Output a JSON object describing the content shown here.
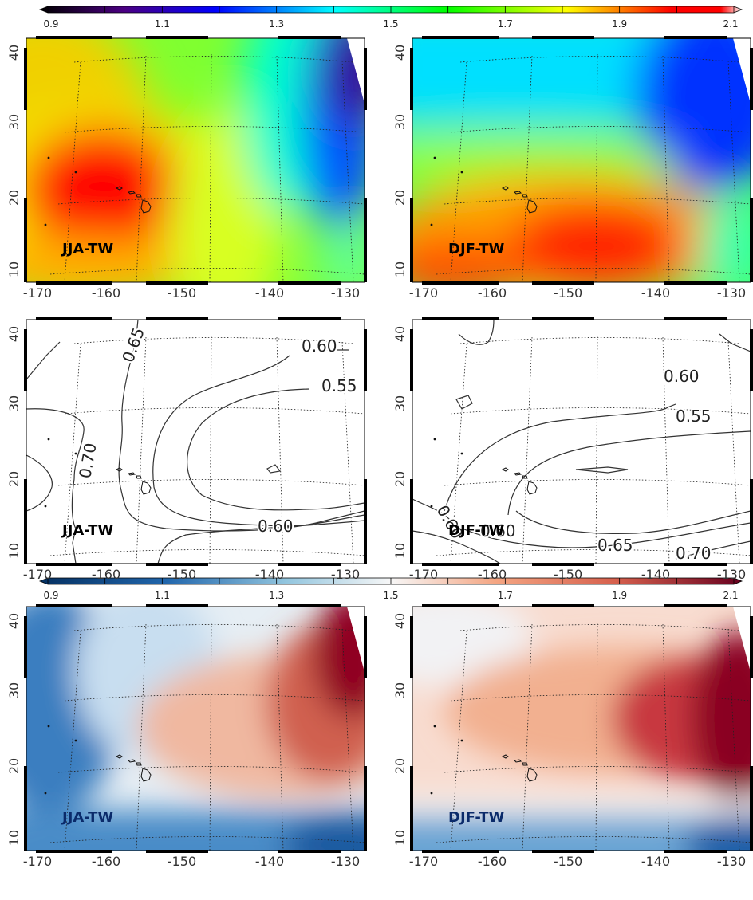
{
  "colorbars": [
    {
      "ticks": [
        "0.9",
        "1.1",
        "1.3",
        "1.5",
        "1.7",
        "1.9",
        "2.1"
      ],
      "colormap": "rainbow",
      "colors": [
        "#000000",
        "#4b0082",
        "#0000ff",
        "#00ffff",
        "#00ff00",
        "#ffff00",
        "#ff0000",
        "#ffffff"
      ]
    },
    {
      "ticks": [
        "0.9",
        "1.1",
        "1.3",
        "1.5",
        "1.7",
        "1.9",
        "2.1"
      ],
      "colormap": "blue-white-red",
      "colors": [
        "#053061",
        "#2166ac",
        "#92c5de",
        "#f7f7f7",
        "#f4a582",
        "#d6604d",
        "#67001f"
      ]
    }
  ],
  "axes": {
    "lon_ticks": [
      "-170",
      "-160",
      "-150",
      "-140",
      "-130"
    ],
    "lat_ticks": [
      "10",
      "20",
      "30",
      "40"
    ]
  },
  "panels": [
    {
      "id": "row1-left",
      "label": "JJA-TW",
      "type": "filled",
      "colormap": "rainbow"
    },
    {
      "id": "row1-right",
      "label": "DJF-TW",
      "type": "filled",
      "colormap": "rainbow"
    },
    {
      "id": "row2-left",
      "label": "JJA-TW",
      "type": "contour",
      "contour_labels": [
        "0.65",
        "0.60",
        "0.55",
        "0.70",
        "0.60"
      ]
    },
    {
      "id": "row2-right",
      "label": "DJF-TW",
      "type": "contour",
      "contour_labels": [
        "0.60",
        "0.55",
        "0.65",
        "0.70",
        "0.60",
        "0.60"
      ]
    },
    {
      "id": "row3-left",
      "label": "JJA-TW",
      "type": "filled",
      "colormap": "blue-white-red"
    },
    {
      "id": "row3-right",
      "label": "DJF-TW",
      "type": "filled",
      "colormap": "blue-white-red"
    }
  ]
}
